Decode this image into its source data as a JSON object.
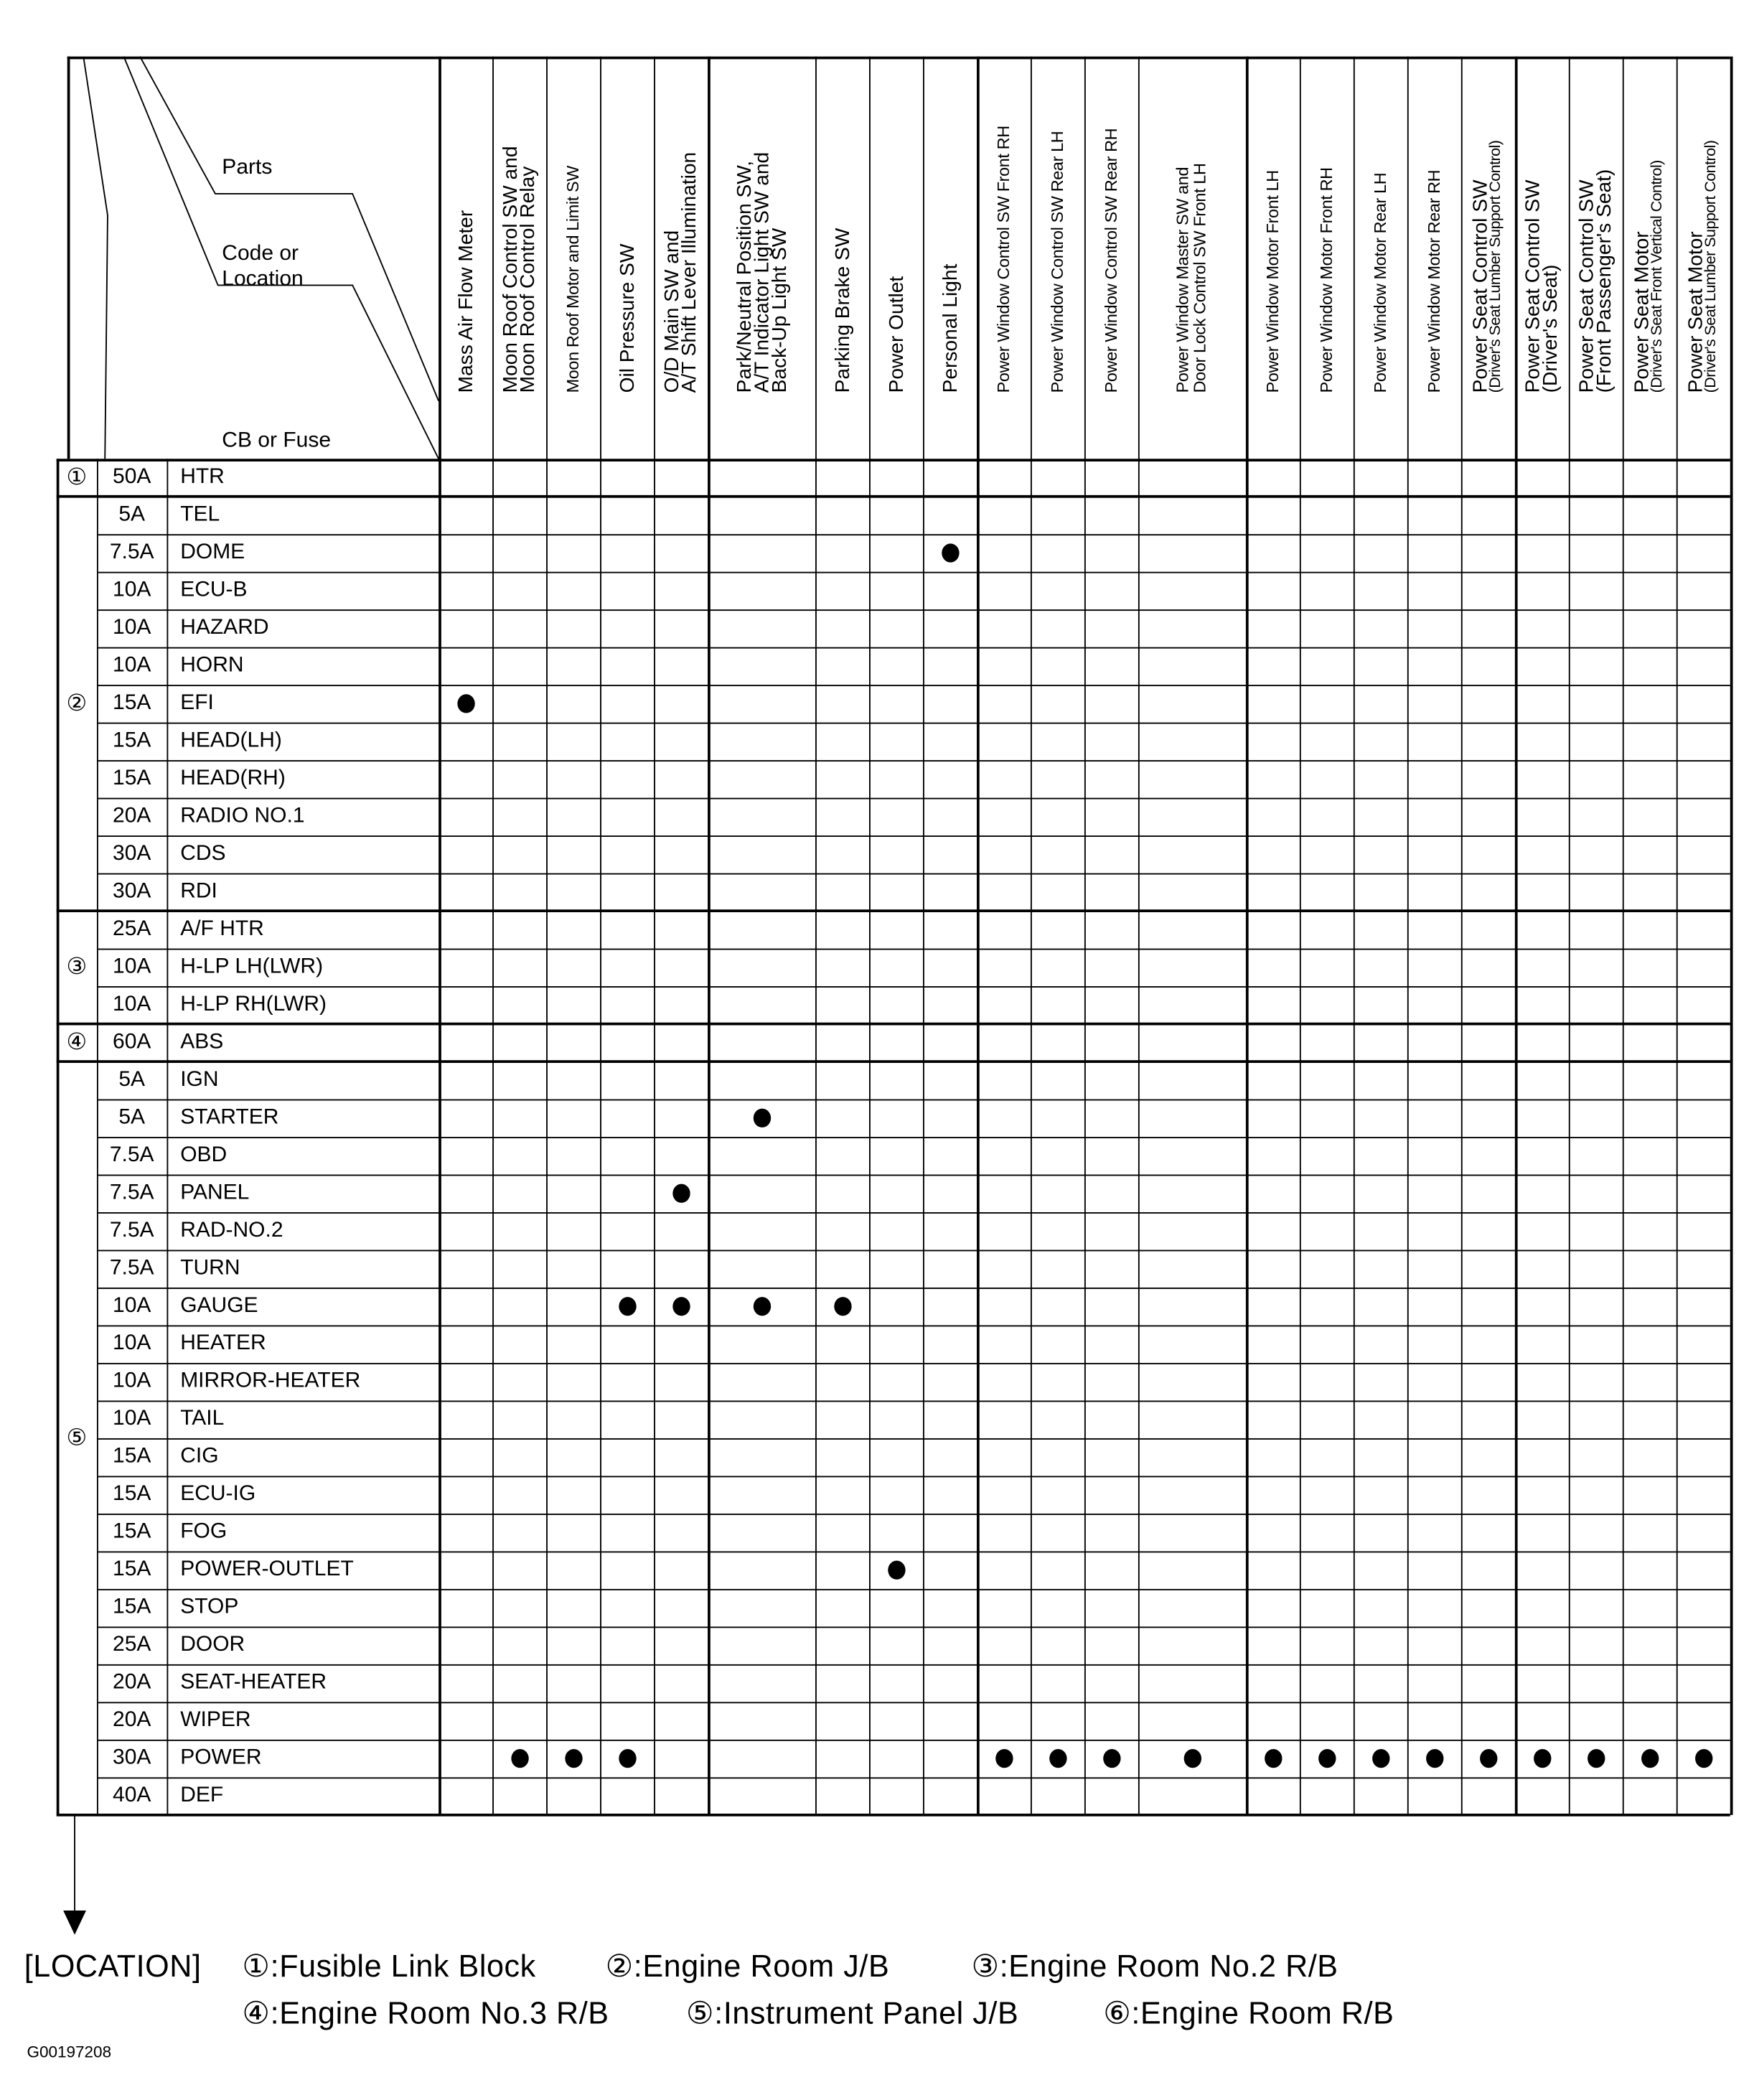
{
  "corner": {
    "parts": "Parts",
    "code_or_location": "Code or Location",
    "cb_or_fuse": "CB or Fuse"
  },
  "parts": [
    {
      "lines": [
        "Mass Air Flow Meter"
      ]
    },
    {
      "lines": [
        "Moon Roof Control SW and",
        "Moon Roof Control Relay"
      ]
    },
    {
      "lines": [
        "Moon Roof Motor and Limit SW"
      ],
      "narrow": true
    },
    {
      "lines": [
        "Oil Pressure SW"
      ]
    },
    {
      "lines": [
        "O/D Main SW and",
        "A/T Shift Lever Illumination"
      ]
    },
    {
      "lines": [
        "Park/Neutral Position SW,",
        "A/T Indicator Light SW and",
        "Back-Up Light SW"
      ]
    },
    {
      "lines": [
        "Parking Brake SW"
      ]
    },
    {
      "lines": [
        "Power Outlet"
      ]
    },
    {
      "lines": [
        "Personal Light"
      ]
    },
    {
      "lines": [
        "Power Window Control SW Front RH"
      ],
      "narrow": true
    },
    {
      "lines": [
        "Power Window Control SW Rear LH"
      ],
      "narrow": true
    },
    {
      "lines": [
        "Power Window Control SW Rear RH"
      ],
      "narrow": true
    },
    {
      "lines": [
        "Power Window Master SW and",
        "Door Lock Control SW Front LH"
      ],
      "narrow": true
    },
    {
      "lines": [
        "Power Window Motor Front LH"
      ],
      "narrow": true
    },
    {
      "lines": [
        "Power Window Motor Front RH"
      ],
      "narrow": true
    },
    {
      "lines": [
        "Power Window Motor Rear LH"
      ],
      "narrow": true
    },
    {
      "lines": [
        "Power Window Motor Rear RH"
      ],
      "narrow": true
    },
    {
      "lines": [
        "Power Seat Control SW"
      ],
      "sub": "(Driver's Seat Lumber Support Control)"
    },
    {
      "lines": [
        "Power Seat Control SW",
        "(Driver's Seat)"
      ]
    },
    {
      "lines": [
        "Power Seat Control SW",
        "(Front Passenger's Seat)"
      ]
    },
    {
      "lines": [
        "Power Seat Motor"
      ],
      "sub": "(Driver's Seat Front Vertical Control)"
    },
    {
      "lines": [
        "Power Seat Motor"
      ],
      "sub": "(Driver's Seat Lumber Support Control)"
    }
  ],
  "groups": [
    {
      "code": "①",
      "rows": 1
    },
    {
      "code": "②",
      "rows": 11
    },
    {
      "code": "③",
      "rows": 3
    },
    {
      "code": "④",
      "rows": 1
    },
    {
      "code": "⑤",
      "rows": 20
    }
  ],
  "rows": [
    {
      "amp": "50A",
      "name": "HTR",
      "dots": []
    },
    {
      "amp": "5A",
      "name": "TEL",
      "dots": []
    },
    {
      "amp": "7.5A",
      "name": "DOME",
      "dots": [
        8
      ]
    },
    {
      "amp": "10A",
      "name": "ECU-B",
      "dots": []
    },
    {
      "amp": "10A",
      "name": "HAZARD",
      "dots": []
    },
    {
      "amp": "10A",
      "name": "HORN",
      "dots": []
    },
    {
      "amp": "15A",
      "name": "EFI",
      "dots": [
        0
      ]
    },
    {
      "amp": "15A",
      "name": "HEAD(LH)",
      "dots": []
    },
    {
      "amp": "15A",
      "name": "HEAD(RH)",
      "dots": []
    },
    {
      "amp": "20A",
      "name": "RADIO NO.1",
      "dots": []
    },
    {
      "amp": "30A",
      "name": "CDS",
      "dots": []
    },
    {
      "amp": "30A",
      "name": "RDI",
      "dots": []
    },
    {
      "amp": "25A",
      "name": "A/F HTR",
      "dots": []
    },
    {
      "amp": "10A",
      "name": "H-LP LH(LWR)",
      "dots": []
    },
    {
      "amp": "10A",
      "name": "H-LP RH(LWR)",
      "dots": []
    },
    {
      "amp": "60A",
      "name": "ABS",
      "dots": []
    },
    {
      "amp": "5A",
      "name": "IGN",
      "dots": []
    },
    {
      "amp": "5A",
      "name": "STARTER",
      "dots": [
        5
      ]
    },
    {
      "amp": "7.5A",
      "name": "OBD",
      "dots": []
    },
    {
      "amp": "7.5A",
      "name": "PANEL",
      "dots": [
        4
      ]
    },
    {
      "amp": "7.5A",
      "name": "RAD-NO.2",
      "dots": []
    },
    {
      "amp": "7.5A",
      "name": "TURN",
      "dots": []
    },
    {
      "amp": "10A",
      "name": "GAUGE",
      "dots": [
        3,
        4,
        5,
        6
      ]
    },
    {
      "amp": "10A",
      "name": "HEATER",
      "dots": []
    },
    {
      "amp": "10A",
      "name": "MIRROR-HEATER",
      "dots": []
    },
    {
      "amp": "10A",
      "name": "TAIL",
      "dots": []
    },
    {
      "amp": "15A",
      "name": "CIG",
      "dots": []
    },
    {
      "amp": "15A",
      "name": "ECU-IG",
      "dots": []
    },
    {
      "amp": "15A",
      "name": "FOG",
      "dots": []
    },
    {
      "amp": "15A",
      "name": "POWER-OUTLET",
      "dots": [
        7
      ]
    },
    {
      "amp": "15A",
      "name": "STOP",
      "dots": []
    },
    {
      "amp": "25A",
      "name": "DOOR",
      "dots": []
    },
    {
      "amp": "20A",
      "name": "SEAT-HEATER",
      "dots": []
    },
    {
      "amp": "20A",
      "name": "WIPER",
      "dots": []
    },
    {
      "amp": "30A",
      "name": "POWER",
      "dots": [
        1,
        2,
        3,
        9,
        10,
        11,
        12,
        13,
        14,
        15,
        16,
        17,
        18,
        19,
        20,
        21
      ]
    },
    {
      "amp": "40A",
      "name": "DEF",
      "dots": []
    }
  ],
  "legend": {
    "heading": "[LOCATION]",
    "line1": [
      "①:Fusible Link Block",
      "②:Engine Room J/B",
      "③:Engine Room No.2 R/B"
    ],
    "line2": [
      "④:Engine Room No.3 R/B",
      "⑤:Instrument Panel J/B",
      "⑥:Engine Room R/B"
    ]
  },
  "figure_code": "G00197208"
}
